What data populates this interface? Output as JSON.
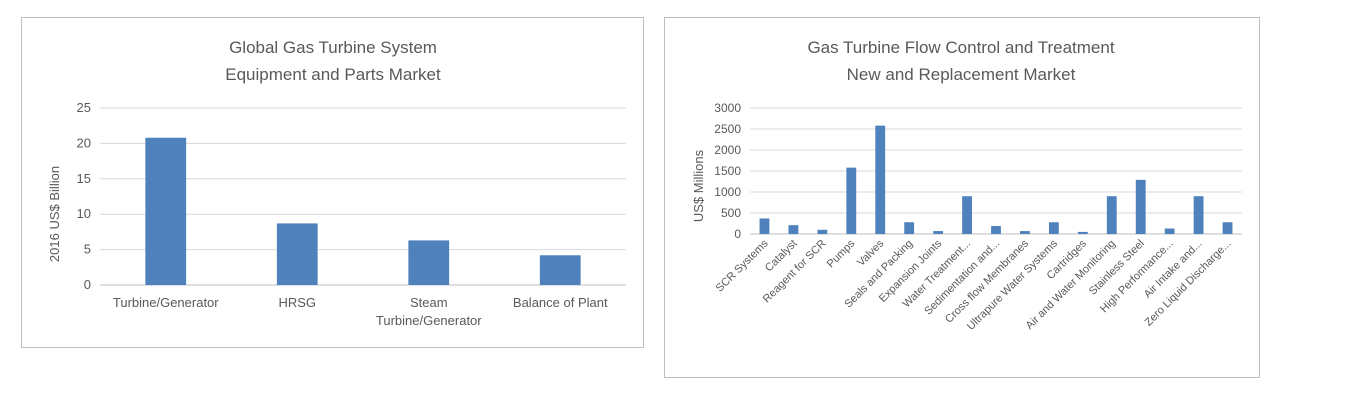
{
  "chart_data": [
    {
      "type": "bar",
      "title": "Global Gas Turbine System",
      "subtitle": "Equipment and Parts Market",
      "ylabel": "2016 US$ Billion",
      "xlabel": "",
      "ylim": [
        0,
        25
      ],
      "yticks": [
        "0",
        "5",
        "10",
        "15",
        "20",
        "25"
      ],
      "grid": true,
      "categories": [
        "Turbine/Generator",
        "HRSG",
        "Steam Turbine/Generator",
        "Balance of Plant"
      ],
      "category_lines": [
        [
          "Turbine/Generator"
        ],
        [
          "HRSG"
        ],
        [
          "Steam",
          "Turbine/Generator"
        ],
        [
          "Balance of Plant"
        ]
      ],
      "values": [
        20.8,
        8.7,
        6.3,
        4.2
      ],
      "bar_color": "#4f81bd"
    },
    {
      "type": "bar",
      "title": "Gas Turbine Flow Control and Treatment",
      "subtitle": "New and Replacement Market",
      "ylabel": "US$ Millions",
      "xlabel": "",
      "ylim": [
        0,
        3000
      ],
      "yticks": [
        "0",
        "500",
        "1000",
        "1500",
        "2000",
        "2500",
        "3000"
      ],
      "grid": true,
      "categories": [
        "SCR Systems",
        "Catalyst",
        "Reagent for SCR",
        "Pumps",
        "Valves",
        "Seals and Packing",
        "Expansion Joints",
        "Water Treatment...",
        "Sedimentation and...",
        "Cross flow Membranes",
        "Ultrapure Water Systems",
        "Cartridges",
        "Air and Water Monitoring",
        "Stainless Steel",
        "High Performance...",
        "Air Intake and...",
        "Zero Liquid Discharge..."
      ],
      "values": [
        370,
        210,
        100,
        1580,
        2580,
        280,
        70,
        900,
        190,
        70,
        280,
        50,
        900,
        1290,
        130,
        900,
        280
      ],
      "bar_color": "#4f81bd"
    }
  ]
}
